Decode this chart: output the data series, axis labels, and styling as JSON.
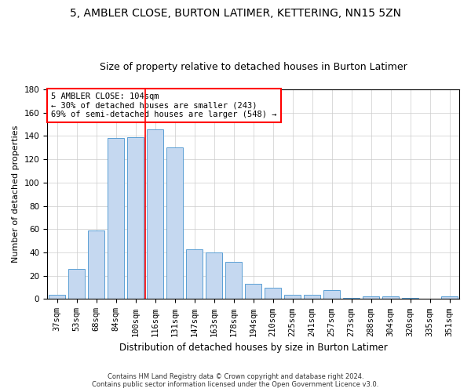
{
  "title": "5, AMBLER CLOSE, BURTON LATIMER, KETTERING, NN15 5ZN",
  "subtitle": "Size of property relative to detached houses in Burton Latimer",
  "xlabel": "Distribution of detached houses by size in Burton Latimer",
  "ylabel": "Number of detached properties",
  "categories": [
    "37sqm",
    "53sqm",
    "68sqm",
    "84sqm",
    "100sqm",
    "116sqm",
    "131sqm",
    "147sqm",
    "163sqm",
    "178sqm",
    "194sqm",
    "210sqm",
    "225sqm",
    "241sqm",
    "257sqm",
    "273sqm",
    "288sqm",
    "304sqm",
    "320sqm",
    "335sqm",
    "351sqm"
  ],
  "values": [
    4,
    26,
    59,
    138,
    139,
    146,
    130,
    43,
    40,
    32,
    13,
    10,
    4,
    4,
    8,
    1,
    2,
    2,
    1,
    0,
    2
  ],
  "bar_color": "#c5d8f0",
  "bar_edge_color": "#5a9fd4",
  "ylim": [
    0,
    180
  ],
  "yticks": [
    0,
    20,
    40,
    60,
    80,
    100,
    120,
    140,
    160,
    180
  ],
  "property_label": "5 AMBLER CLOSE: 104sqm",
  "annotation_line1": "← 30% of detached houses are smaller (243)",
  "annotation_line2": "69% of semi-detached houses are larger (548) →",
  "vline_category_index": 4,
  "footer1": "Contains HM Land Registry data © Crown copyright and database right 2024.",
  "footer2": "Contains public sector information licensed under the Open Government Licence v3.0.",
  "grid_color": "#cccccc",
  "background_color": "#ffffff",
  "title_fontsize": 10,
  "subtitle_fontsize": 9,
  "tick_fontsize": 7.5,
  "ylabel_fontsize": 8,
  "xlabel_fontsize": 8.5,
  "annotation_fontsize": 7.5,
  "footer_fontsize": 6
}
